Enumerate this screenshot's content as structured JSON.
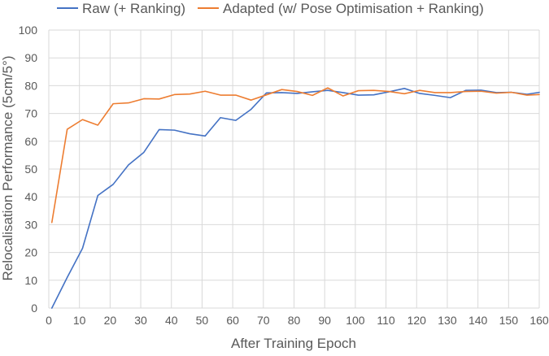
{
  "chart_data": {
    "type": "line",
    "title": "",
    "xlabel": "After Training Epoch",
    "ylabel": "Relocalisation Performance (5cm/5°)",
    "xlim": [
      0,
      160
    ],
    "ylim": [
      0,
      100
    ],
    "xticks": [
      0,
      10,
      20,
      30,
      40,
      50,
      60,
      70,
      80,
      90,
      100,
      110,
      120,
      130,
      140,
      150,
      160
    ],
    "yticks": [
      0,
      10,
      20,
      30,
      40,
      50,
      60,
      70,
      80,
      90,
      100
    ],
    "grid": "vertical and horizontal major gridlines",
    "legend_position": "top",
    "series": [
      {
        "name": "Raw (+ Ranking)",
        "color": "#4472C4",
        "x": [
          1,
          6,
          11,
          16,
          21,
          26,
          31,
          36,
          41,
          46,
          51,
          56,
          61,
          66,
          71,
          76,
          81,
          86,
          91,
          96,
          101,
          106,
          111,
          116,
          121,
          126,
          131,
          136,
          141,
          146,
          151,
          156,
          160
        ],
        "values": [
          0,
          11,
          21.5,
          40.5,
          44.5,
          51.5,
          56,
          64.2,
          64,
          62.7,
          61.9,
          68.5,
          67.5,
          71.5,
          77.4,
          77.5,
          77.2,
          77.8,
          78.3,
          77.5,
          76.6,
          76.7,
          77.8,
          79,
          77.2,
          76.5,
          75.7,
          78.3,
          78.4,
          77.5,
          77.6,
          76.9,
          77.6
        ]
      },
      {
        "name": "Adapted (w/ Pose Optimisation + Ranking)",
        "color": "#ED7D31",
        "x": [
          1,
          6,
          11,
          16,
          21,
          26,
          31,
          36,
          41,
          46,
          51,
          56,
          61,
          66,
          71,
          76,
          81,
          86,
          91,
          96,
          101,
          106,
          111,
          116,
          121,
          126,
          131,
          136,
          141,
          146,
          151,
          156,
          160
        ],
        "values": [
          30.8,
          64.3,
          67.8,
          65.8,
          73.5,
          73.8,
          75.3,
          75.2,
          76.8,
          77,
          78,
          76.6,
          76.6,
          74.8,
          76.7,
          78.6,
          77.9,
          76.5,
          79.2,
          76.3,
          78.2,
          78.3,
          77.9,
          77.1,
          78.3,
          77.5,
          77.5,
          77.9,
          78,
          77.3,
          77.6,
          76.6,
          76.8
        ]
      }
    ]
  }
}
